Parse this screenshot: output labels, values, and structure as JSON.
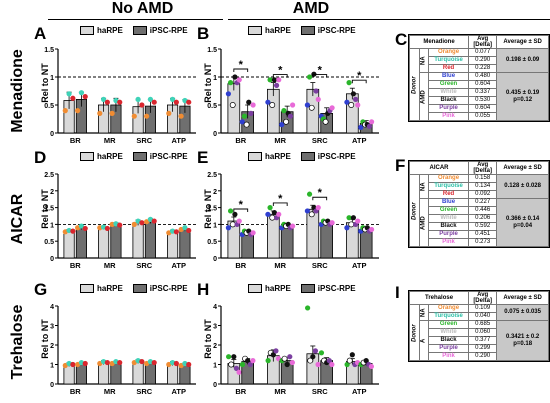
{
  "header": {
    "no_amd": "No AMD",
    "amd": "AMD"
  },
  "rows": [
    "Menadione",
    "AICAR",
    "Trehalose"
  ],
  "y_axis_label": "Rel to NT",
  "legend": {
    "haRPE": "haRPE",
    "ipsc": "iPSC-RPE"
  },
  "colors": {
    "haRPE": "#d9d9d9",
    "ipsc": "#6f6f6f",
    "orange": "#f08c32",
    "turquoise": "#3fd3b8",
    "red": "#d9262e",
    "blue": "#2f3fd0",
    "green": "#2ab52a",
    "white": "#ffffff",
    "black": "#111111",
    "purple": "#7b3fa0",
    "pink": "#e86ad8"
  },
  "panels": [
    {
      "letter": "A"
    },
    {
      "letter": "B"
    },
    {
      "letter": "C"
    },
    {
      "letter": "D"
    },
    {
      "letter": "E"
    },
    {
      "letter": "F"
    },
    {
      "letter": "G"
    },
    {
      "letter": "H"
    },
    {
      "letter": "I"
    }
  ],
  "chart_data": [
    {
      "panel": "A",
      "type": "bar",
      "categories": [
        "BR",
        "MR",
        "SRC",
        "ATP"
      ],
      "ylim": [
        0,
        1.5
      ],
      "yticks": [
        0,
        0.5,
        1,
        1.5
      ],
      "ylabel": "Rel to NT",
      "reference_line": 1,
      "series": [
        {
          "name": "haRPE",
          "values": [
            0.58,
            0.5,
            0.47,
            0.5
          ],
          "errors": [
            0.15,
            0.12,
            0.12,
            0.12
          ]
        },
        {
          "name": "iPSC-RPE",
          "values": [
            0.6,
            0.5,
            0.48,
            0.48
          ],
          "errors": [
            0.13,
            0.12,
            0.12,
            0.12
          ]
        }
      ],
      "points": {
        "colors": [
          "orange",
          "turquoise",
          "red"
        ],
        "haRPE": [
          [
            0.4,
            0.7,
            0.62
          ],
          [
            0.35,
            0.6,
            0.55
          ],
          [
            0.3,
            0.6,
            0.5
          ],
          [
            0.35,
            0.6,
            0.55
          ]
        ],
        "iPSC-RPE": [
          [
            0.4,
            0.72,
            0.65
          ],
          [
            0.35,
            0.58,
            0.55
          ],
          [
            0.3,
            0.6,
            0.55
          ],
          [
            0.3,
            0.58,
            0.55
          ]
        ]
      },
      "significance": []
    },
    {
      "panel": "B",
      "type": "bar",
      "categories": [
        "BR",
        "MR",
        "SRC",
        "ATP"
      ],
      "ylim": [
        0,
        1.5
      ],
      "yticks": [
        0,
        0.5,
        1,
        1.5
      ],
      "ylabel": "Rel to NT",
      "reference_line": 1,
      "series": [
        {
          "name": "haRPE",
          "values": [
            0.88,
            0.78,
            0.78,
            0.7
          ],
          "errors": [
            0.12,
            0.12,
            0.12,
            0.1
          ]
        },
        {
          "name": "iPSC-RPE",
          "values": [
            0.38,
            0.38,
            0.35,
            0.17
          ],
          "errors": [
            0.12,
            0.1,
            0.1,
            0.05
          ]
        }
      ],
      "points": {
        "colors": [
          "blue",
          "green",
          "white",
          "black",
          "purple",
          "pink"
        ],
        "haRPE": [
          [
            0.7,
            0.9,
            0.5,
            1.0,
            0.9,
            0.95
          ],
          [
            0.55,
            0.95,
            0.5,
            0.95,
            0.85,
            0.95
          ],
          [
            0.5,
            1.0,
            0.45,
            1.05,
            0.75,
            0.6
          ],
          [
            0.55,
            0.9,
            0.5,
            0.7,
            0.6,
            0.5
          ]
        ],
        "iPSC-RPE": [
          [
            0.2,
            0.3,
            0.15,
            0.55,
            0.35,
            0.5
          ],
          [
            0.15,
            0.4,
            0.2,
            0.35,
            0.3,
            0.5
          ],
          [
            0.3,
            0.25,
            0.2,
            0.35,
            0.4,
            0.45
          ],
          [
            0.1,
            0.2,
            0.15,
            0.15,
            0.12,
            0.2
          ]
        ]
      },
      "significance": [
        "*",
        "*",
        "*",
        "*"
      ]
    },
    {
      "panel": "D",
      "type": "bar",
      "categories": [
        "BR",
        "MR",
        "SRC",
        "ATP"
      ],
      "ylim": [
        0,
        2.5
      ],
      "yticks": [
        0,
        0.5,
        1,
        1.5,
        2,
        2.5
      ],
      "ylabel": "Rel to NT",
      "reference_line": 1,
      "series": [
        {
          "name": "haRPE",
          "values": [
            0.8,
            0.9,
            1.05,
            0.78
          ],
          "errors": [
            0.05,
            0.05,
            0.08,
            0.05
          ]
        },
        {
          "name": "iPSC-RPE",
          "values": [
            0.9,
            1.0,
            1.1,
            0.85
          ],
          "errors": [
            0.05,
            0.05,
            0.07,
            0.05
          ]
        }
      ],
      "points": {
        "colors": [
          "orange",
          "turquoise",
          "red"
        ],
        "haRPE": [
          [
            0.78,
            0.82,
            0.8
          ],
          [
            0.9,
            0.92,
            0.88
          ],
          [
            1.0,
            1.1,
            1.05
          ],
          [
            0.75,
            0.8,
            0.78
          ]
        ],
        "iPSC-RPE": [
          [
            0.9,
            0.95,
            0.88
          ],
          [
            1.0,
            1.02,
            0.98
          ],
          [
            1.08,
            1.15,
            1.1
          ],
          [
            0.85,
            0.9,
            0.82
          ]
        ]
      },
      "significance": []
    },
    {
      "panel": "E",
      "type": "bar",
      "categories": [
        "BR",
        "MR",
        "SRC",
        "ATP"
      ],
      "ylim": [
        0,
        2.5
      ],
      "yticks": [
        0,
        0.5,
        1,
        1.5,
        2,
        2.5
      ],
      "ylabel": "Rel to NT",
      "reference_line": 1,
      "series": [
        {
          "name": "haRPE",
          "values": [
            1.1,
            1.3,
            1.45,
            1.05
          ],
          "errors": [
            0.12,
            0.1,
            0.12,
            0.1
          ]
        },
        {
          "name": "iPSC-RPE",
          "values": [
            0.75,
            0.95,
            1.05,
            0.85
          ],
          "errors": [
            0.05,
            0.05,
            0.05,
            0.05
          ]
        }
      ],
      "points": {
        "colors": [
          "blue",
          "green",
          "white",
          "black",
          "purple",
          "pink"
        ],
        "haRPE": [
          [
            0.9,
            1.4,
            1.0,
            1.3,
            1.0,
            1.1
          ],
          [
            1.3,
            1.5,
            1.2,
            1.35,
            1.2,
            1.3
          ],
          [
            1.4,
            1.9,
            1.3,
            1.5,
            1.4,
            1.5
          ],
          [
            0.9,
            1.2,
            1.0,
            1.2,
            1.0,
            1.1
          ]
        ],
        "iPSC-RPE": [
          [
            0.7,
            0.8,
            0.75,
            0.8,
            0.7,
            0.75
          ],
          [
            0.9,
            1.0,
            0.95,
            1.0,
            0.9,
            0.95
          ],
          [
            1.0,
            1.1,
            1.05,
            1.1,
            1.0,
            1.05
          ],
          [
            0.8,
            0.9,
            0.85,
            0.9,
            0.8,
            0.85
          ]
        ]
      },
      "significance": [
        "*",
        "*",
        "*",
        ""
      ]
    },
    {
      "panel": "G",
      "type": "bar",
      "categories": [
        "BR",
        "MR",
        "SRC",
        "ATP"
      ],
      "ylim": [
        0,
        4
      ],
      "yticks": [
        0,
        1,
        2,
        3,
        4
      ],
      "ylabel": "Rel to NT",
      "reference_line": null,
      "series": [
        {
          "name": "haRPE",
          "values": [
            1.0,
            1.1,
            1.15,
            1.05
          ],
          "errors": [
            0.1,
            0.1,
            0.1,
            0.1
          ]
        },
        {
          "name": "iPSC-RPE",
          "values": [
            1.05,
            1.1,
            1.1,
            1.0
          ],
          "errors": [
            0.08,
            0.08,
            0.08,
            0.08
          ]
        }
      ],
      "points": {
        "colors": [
          "orange",
          "turquoise",
          "red"
        ],
        "haRPE": [
          [
            0.95,
            1.05,
            1.0
          ],
          [
            1.05,
            1.15,
            1.1
          ],
          [
            1.1,
            1.2,
            1.15
          ],
          [
            1.0,
            1.1,
            1.05
          ]
        ],
        "iPSC-RPE": [
          [
            1.0,
            1.1,
            1.05
          ],
          [
            1.05,
            1.15,
            1.1
          ],
          [
            1.05,
            1.15,
            1.1
          ],
          [
            0.95,
            1.05,
            1.0
          ]
        ]
      },
      "significance": []
    },
    {
      "panel": "H",
      "type": "bar",
      "categories": [
        "BR",
        "MR",
        "SRC",
        "ATP"
      ],
      "ylim": [
        0,
        4
      ],
      "yticks": [
        0,
        1,
        2,
        3,
        4
      ],
      "ylabel": "Rel to NT",
      "reference_line": null,
      "series": [
        {
          "name": "haRPE",
          "values": [
            1.05,
            1.45,
            1.55,
            1.15
          ],
          "errors": [
            0.2,
            0.3,
            0.4,
            0.15
          ]
        },
        {
          "name": "iPSC-RPE",
          "values": [
            1.15,
            1.2,
            1.2,
            1.05
          ],
          "errors": [
            0.15,
            0.15,
            0.15,
            0.1
          ]
        }
      ],
      "points": {
        "colors": [
          "green",
          "white",
          "black",
          "purple",
          "pink"
        ],
        "haRPE": [
          [
            1.4,
            1.0,
            1.4,
            0.8,
            0.6
          ],
          [
            1.2,
            1.6,
            1.5,
            1.7,
            1.3
          ],
          [
            3.9,
            1.2,
            1.4,
            1.7,
            1.0
          ],
          [
            1.0,
            1.2,
            1.5,
            1.0,
            1.1
          ]
        ],
        "iPSC-RPE": [
          [
            1.0,
            1.3,
            1.2,
            1.0,
            1.2
          ],
          [
            1.2,
            1.3,
            1.0,
            1.4,
            1.1
          ],
          [
            1.6,
            1.2,
            1.1,
            1.2,
            1.0
          ],
          [
            1.0,
            1.1,
            1.2,
            1.0,
            0.9
          ]
        ]
      },
      "significance": []
    }
  ],
  "tables": {
    "C": {
      "title": "Menadione",
      "col_avg": "Avg [Delta]",
      "col_sd": "Average ± SD",
      "group_label": "Donor",
      "na_rows": [
        {
          "name": "Orange",
          "avg": "0.077",
          "color": "#f08c32"
        },
        {
          "name": "Turquoise",
          "avg": "0.290",
          "color": "#2bbfa6"
        },
        {
          "name": "Red",
          "avg": "0.228",
          "color": "#d9262e"
        }
      ],
      "na_sum": "0.198 ± 0.09",
      "na_label": "NA",
      "amd_rows": [
        {
          "name": "Blue",
          "avg": "0.480",
          "color": "#2f3fd0"
        },
        {
          "name": "Green",
          "avg": "0.604",
          "color": "#2ab52a"
        },
        {
          "name": "White",
          "avg": "0.337",
          "color": "#bbbbbb"
        },
        {
          "name": "Black",
          "avg": "0.530",
          "color": "#111111"
        },
        {
          "name": "Purple",
          "avg": "0.604",
          "color": "#7b3fa0"
        },
        {
          "name": "Pink",
          "avg": "0.055",
          "color": "#e86ad8"
        }
      ],
      "amd_sum": "0.435 ± 0.19",
      "amd_p": "p=0.12",
      "amd_label": "AMD"
    },
    "F": {
      "title": "AICAR",
      "col_avg": "Avg [Delta]",
      "col_sd": "Average ± SD",
      "group_label": "Donor",
      "na_rows": [
        {
          "name": "Orange",
          "avg": "0.158",
          "color": "#f08c32"
        },
        {
          "name": "Turquoise",
          "avg": "0.134",
          "color": "#2bbfa6"
        },
        {
          "name": "Red",
          "avg": "0.092",
          "color": "#d9262e"
        }
      ],
      "na_sum": "0.128 ± 0.028",
      "na_label": "NA",
      "amd_rows": [
        {
          "name": "Blue",
          "avg": "0.227",
          "color": "#2f3fd0"
        },
        {
          "name": "Green",
          "avg": "0.446",
          "color": "#2ab52a"
        },
        {
          "name": "White",
          "avg": "0.206",
          "color": "#bbbbbb"
        },
        {
          "name": "Black",
          "avg": "0.592",
          "color": "#111111"
        },
        {
          "name": "Purple",
          "avg": "0.451",
          "color": "#7b3fa0"
        },
        {
          "name": "Pink",
          "avg": "0.273",
          "color": "#e86ad8"
        }
      ],
      "amd_sum": "0.366 ± 0.14",
      "amd_p": "p=0.04",
      "amd_label": "AMD"
    },
    "I": {
      "title": "Trehalose",
      "col_avg": "Avg [Delta]",
      "col_sd": "Average ± SD",
      "group_label": "Donor",
      "na_rows": [
        {
          "name": "Orange",
          "avg": "0.109",
          "color": "#f08c32"
        },
        {
          "name": "Turquoise",
          "avg": "0.040",
          "color": "#2bbfa6"
        }
      ],
      "na_sum": "0.075 ± 0.035",
      "na_label": "NA",
      "amd_rows": [
        {
          "name": "Green",
          "avg": "0.685",
          "color": "#2ab52a"
        },
        {
          "name": "White",
          "avg": "0.060",
          "color": "#bbbbbb"
        },
        {
          "name": "Black",
          "avg": "0.377",
          "color": "#111111"
        },
        {
          "name": "Purple",
          "avg": "0.299",
          "color": "#7b3fa0"
        },
        {
          "name": "Pink",
          "avg": "0.290",
          "color": "#e86ad8"
        }
      ],
      "amd_sum": "0.3421 ± 0.2",
      "amd_p": "p=0.18",
      "amd_label": "A"
    }
  }
}
